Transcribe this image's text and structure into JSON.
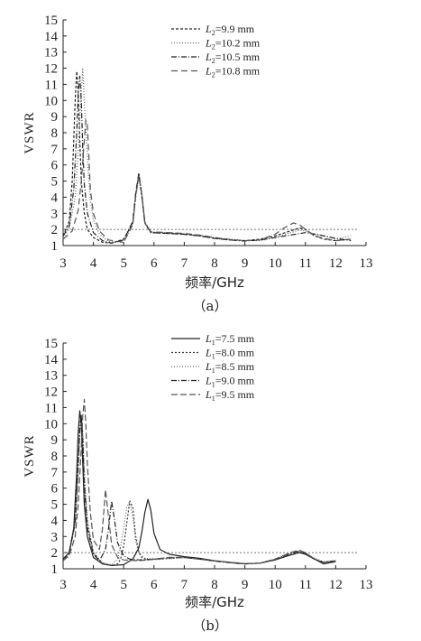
{
  "chart_data": [
    {
      "type": "line",
      "caption": "（a）",
      "xlabel": "频率/GHz",
      "ylabel": "VSWR",
      "xlim": [
        3,
        13
      ],
      "ylim": [
        1,
        15
      ],
      "xticks": [
        "3",
        "4",
        "5",
        "6",
        "7",
        "8",
        "9",
        "10",
        "11",
        "12",
        "13"
      ],
      "yticks": [
        "1",
        "2",
        "3",
        "4",
        "5",
        "6",
        "7",
        "8",
        "9",
        "10",
        "11",
        "12",
        "13",
        "14",
        "15"
      ],
      "reference_line": 2,
      "grid": false,
      "legend_position": "top-right",
      "series": [
        {
          "name": "L2=9.9 mm",
          "label_var": "L",
          "label_sub": "2",
          "label_rest": "=9.9 mm",
          "dash": "3,2",
          "color": "#222222",
          "x": [
            3.0,
            3.2,
            3.3,
            3.4,
            3.45,
            3.5,
            3.55,
            3.6,
            3.7,
            3.8,
            4.0,
            4.3,
            4.6,
            5.0,
            5.3,
            5.4,
            5.5,
            5.6,
            5.7,
            5.9,
            6.5,
            7.0,
            7.5,
            8.0,
            8.5,
            9.0,
            9.5,
            10.0,
            10.5,
            10.8,
            11.0,
            11.3,
            11.6,
            12.0,
            12.5
          ],
          "y": [
            1.6,
            2.5,
            5.0,
            10.0,
            11.8,
            10.5,
            7.5,
            5.0,
            3.0,
            2.0,
            1.5,
            1.2,
            1.15,
            1.4,
            2.4,
            4.2,
            5.4,
            4.0,
            2.4,
            1.8,
            1.75,
            1.7,
            1.6,
            1.45,
            1.35,
            1.3,
            1.4,
            1.6,
            1.9,
            2.1,
            2.0,
            1.6,
            1.4,
            1.3,
            1.4
          ]
        },
        {
          "name": "L2=10.2 mm",
          "label_var": "L",
          "label_sub": "2",
          "label_rest": "=10.2 mm",
          "dash": "1,2",
          "color": "#666666",
          "x": [
            3.0,
            3.2,
            3.4,
            3.5,
            3.6,
            3.65,
            3.7,
            3.8,
            3.9,
            4.0,
            4.2,
            4.5,
            5.0,
            5.3,
            5.4,
            5.5,
            5.6,
            5.7,
            5.9,
            6.5,
            7.0,
            7.5,
            8.0,
            8.5,
            9.0,
            9.5,
            10.0,
            10.5,
            10.8,
            11.0,
            11.3,
            11.6,
            11.8,
            12.0,
            12.5
          ],
          "y": [
            1.5,
            2.0,
            4.0,
            7.0,
            10.5,
            12.0,
            10.0,
            6.5,
            3.8,
            2.6,
            1.7,
            1.25,
            1.2,
            2.3,
            4.0,
            5.3,
            4.2,
            2.5,
            1.85,
            1.8,
            1.75,
            1.65,
            1.5,
            1.4,
            1.32,
            1.3,
            1.5,
            1.8,
            1.95,
            1.9,
            1.7,
            1.6,
            1.5,
            1.4,
            1.6
          ]
        },
        {
          "name": "L2=10.5 mm",
          "label_var": "L",
          "label_sub": "2",
          "label_rest": "=10.5 mm",
          "dash": "6,2,1,2",
          "color": "#222222",
          "x": [
            3.0,
            3.2,
            3.35,
            3.45,
            3.5,
            3.55,
            3.6,
            3.65,
            3.7,
            3.8,
            4.0,
            4.3,
            4.6,
            5.0,
            5.3,
            5.4,
            5.5,
            5.6,
            5.7,
            5.9,
            6.5,
            7.0,
            7.5,
            8.0,
            8.5,
            9.0,
            9.5,
            10.0,
            10.5,
            11.0,
            11.5,
            12.0,
            12.5
          ],
          "y": [
            1.6,
            2.2,
            4.5,
            8.0,
            10.5,
            11.5,
            10.0,
            7.0,
            4.8,
            3.0,
            1.8,
            1.3,
            1.15,
            1.35,
            2.5,
            4.3,
            5.5,
            4.1,
            2.4,
            1.8,
            1.75,
            1.7,
            1.6,
            1.45,
            1.35,
            1.28,
            1.35,
            1.5,
            1.65,
            1.8,
            1.65,
            1.45,
            1.3
          ]
        },
        {
          "name": "L2=10.8 mm",
          "label_var": "L",
          "label_sub": "2",
          "label_rest": "=10.8 mm",
          "dash": "7,4",
          "color": "#555555",
          "x": [
            3.0,
            3.3,
            3.5,
            3.6,
            3.7,
            3.75,
            3.8,
            3.85,
            3.9,
            4.0,
            4.2,
            4.5,
            5.0,
            5.3,
            5.4,
            5.5,
            5.6,
            5.7,
            5.9,
            6.5,
            7.0,
            7.5,
            8.0,
            8.5,
            9.0,
            9.5,
            10.0,
            10.3,
            10.6,
            10.8,
            11.0,
            11.3,
            11.6,
            12.0,
            12.5
          ],
          "y": [
            1.4,
            1.9,
            3.2,
            5.0,
            7.5,
            8.8,
            8.5,
            6.5,
            4.5,
            3.0,
            1.9,
            1.35,
            1.2,
            2.3,
            4.1,
            5.3,
            4.1,
            2.4,
            1.85,
            1.8,
            1.75,
            1.65,
            1.5,
            1.38,
            1.3,
            1.35,
            1.7,
            2.1,
            2.4,
            2.3,
            2.0,
            1.6,
            1.45,
            1.3,
            1.4
          ]
        }
      ]
    },
    {
      "type": "line",
      "caption": "（b）",
      "xlabel": "频率/GHz",
      "ylabel": "VSWR",
      "xlim": [
        3,
        13
      ],
      "ylim": [
        1,
        15
      ],
      "xticks": [
        "3",
        "4",
        "5",
        "6",
        "7",
        "8",
        "9",
        "10",
        "11",
        "12",
        "13"
      ],
      "yticks": [
        "1",
        "2",
        "3",
        "4",
        "5",
        "6",
        "7",
        "8",
        "9",
        "10",
        "11",
        "12",
        "13",
        "14",
        "15"
      ],
      "reference_line": 2,
      "grid": false,
      "legend_position": "top-right",
      "series": [
        {
          "name": "L1=7.5 mm",
          "label_var": "L",
          "label_sub": "1",
          "label_rest": "=7.5 mm",
          "dash": "",
          "color": "#222222",
          "x": [
            3.0,
            3.2,
            3.35,
            3.45,
            3.5,
            3.55,
            3.6,
            3.65,
            3.7,
            3.8,
            4.0,
            4.3,
            4.6,
            5.0,
            5.3,
            5.5,
            5.6,
            5.7,
            5.8,
            5.9,
            6.0,
            6.2,
            6.5,
            7.0,
            7.5,
            8.0,
            8.5,
            9.0,
            9.5,
            10.0,
            10.5,
            10.8,
            11.0,
            11.3,
            11.6,
            12.0
          ],
          "y": [
            1.6,
            2.0,
            3.5,
            7.0,
            9.5,
            10.8,
            10.0,
            7.5,
            5.0,
            3.0,
            1.7,
            1.3,
            1.2,
            1.25,
            1.6,
            2.3,
            3.3,
            4.5,
            5.3,
            4.6,
            3.2,
            2.2,
            1.9,
            1.75,
            1.65,
            1.5,
            1.4,
            1.32,
            1.35,
            1.55,
            1.85,
            2.0,
            1.9,
            1.6,
            1.3,
            1.45
          ]
        },
        {
          "name": "L1=8.0 mm",
          "label_var": "L",
          "label_sub": "1",
          "label_rest": "=8.0 mm",
          "dash": "2,2",
          "color": "#333333",
          "x": [
            3.0,
            3.2,
            3.4,
            3.5,
            3.55,
            3.6,
            3.65,
            3.7,
            3.8,
            4.0,
            4.3,
            4.6,
            4.8,
            4.9,
            5.0,
            5.1,
            5.2,
            5.3,
            5.4,
            5.5,
            5.6,
            5.8,
            6.2,
            7.0,
            7.5,
            8.0,
            8.5,
            9.0,
            9.5,
            10.0,
            10.5,
            10.8,
            11.0,
            11.3,
            11.6,
            12.0
          ],
          "y": [
            1.5,
            2.0,
            4.0,
            7.5,
            9.5,
            10.5,
            9.0,
            6.5,
            3.8,
            2.0,
            1.35,
            1.2,
            1.3,
            1.6,
            2.4,
            3.8,
            5.2,
            4.8,
            3.0,
            2.0,
            1.7,
            1.55,
            1.6,
            1.7,
            1.6,
            1.48,
            1.38,
            1.3,
            1.35,
            1.55,
            1.9,
            2.05,
            1.9,
            1.6,
            1.4,
            1.5
          ]
        },
        {
          "name": "L1=8.5 mm",
          "label_var": "L",
          "label_sub": "1",
          "label_rest": "=8.5 mm",
          "dash": "1,2",
          "color": "#666666",
          "x": [
            3.0,
            3.2,
            3.4,
            3.5,
            3.55,
            3.6,
            3.65,
            3.7,
            3.8,
            4.0,
            4.3,
            4.6,
            4.8,
            4.9,
            5.0,
            5.1,
            5.2,
            5.3,
            5.4,
            5.5,
            5.7,
            6.2,
            7.0,
            7.5,
            8.0,
            8.5,
            9.0,
            9.5,
            10.0,
            10.5,
            10.8,
            11.0,
            11.3,
            11.6,
            12.0
          ],
          "y": [
            1.5,
            1.9,
            3.8,
            7.0,
            9.2,
            10.3,
            9.5,
            7.0,
            4.0,
            2.0,
            1.35,
            1.25,
            1.6,
            2.4,
            3.5,
            4.8,
            5.2,
            4.2,
            2.7,
            2.0,
            1.65,
            1.6,
            1.7,
            1.6,
            1.48,
            1.38,
            1.3,
            1.35,
            1.6,
            1.95,
            2.1,
            1.95,
            1.65,
            1.45,
            1.5
          ]
        },
        {
          "name": "L1=9.0 mm",
          "label_var": "L",
          "label_sub": "1",
          "label_rest": "=9.0 mm",
          "dash": "6,2,1,2",
          "color": "#222222",
          "x": [
            3.0,
            3.2,
            3.4,
            3.5,
            3.55,
            3.6,
            3.65,
            3.7,
            3.8,
            4.0,
            4.2,
            4.4,
            4.5,
            4.6,
            4.7,
            4.8,
            5.0,
            5.2,
            5.5,
            6.0,
            6.5,
            7.0,
            7.5,
            8.0,
            8.5,
            9.0,
            9.5,
            10.0,
            10.5,
            10.8,
            11.0,
            11.3,
            11.6,
            12.0
          ],
          "y": [
            1.6,
            2.0,
            3.8,
            7.5,
            9.8,
            10.5,
            9.0,
            6.0,
            3.5,
            1.9,
            1.5,
            2.2,
            3.5,
            5.2,
            4.0,
            2.6,
            1.8,
            1.6,
            1.55,
            1.6,
            1.7,
            1.7,
            1.6,
            1.48,
            1.38,
            1.3,
            1.35,
            1.6,
            1.95,
            2.1,
            1.95,
            1.6,
            1.4,
            1.5
          ]
        },
        {
          "name": "L1=9.5 mm",
          "label_var": "L",
          "label_sub": "1",
          "label_rest": "=9.5 mm",
          "dash": "7,3",
          "color": "#555555",
          "x": [
            3.0,
            3.2,
            3.4,
            3.5,
            3.6,
            3.65,
            3.7,
            3.75,
            3.8,
            3.9,
            4.0,
            4.2,
            4.3,
            4.4,
            4.5,
            4.6,
            4.8,
            5.0,
            5.5,
            6.0,
            6.5,
            7.0,
            7.5,
            8.0,
            8.5,
            9.0,
            9.5,
            10.0,
            10.5,
            10.8,
            11.0,
            11.3,
            11.6,
            12.0
          ],
          "y": [
            1.5,
            1.8,
            3.0,
            5.0,
            8.5,
            10.5,
            11.5,
            10.0,
            7.5,
            4.5,
            2.8,
            2.2,
            3.5,
            5.9,
            4.2,
            2.5,
            1.7,
            1.55,
            1.5,
            1.6,
            1.7,
            1.7,
            1.6,
            1.5,
            1.4,
            1.3,
            1.35,
            1.6,
            2.0,
            2.15,
            2.0,
            1.6,
            1.4,
            1.5
          ]
        }
      ]
    }
  ]
}
